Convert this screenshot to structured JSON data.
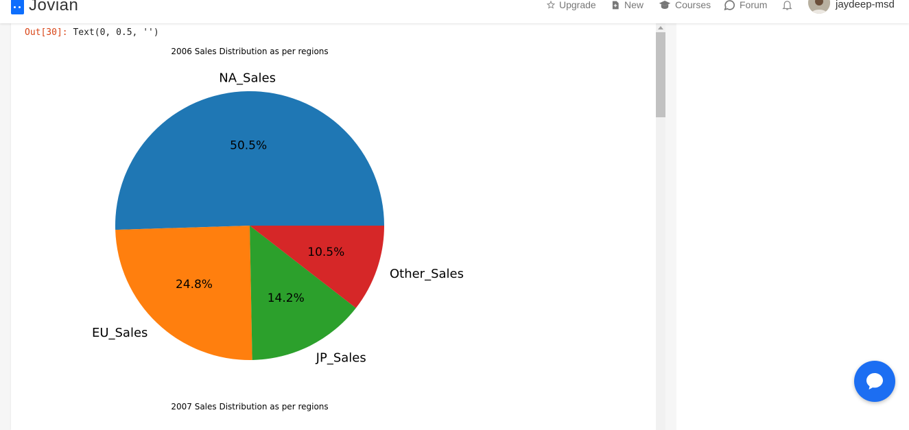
{
  "navbar": {
    "brand": "Jovian",
    "items": [
      {
        "label": "Upgrade",
        "icon": "star-icon"
      },
      {
        "label": "New",
        "icon": "new-file-icon"
      },
      {
        "label": "Courses",
        "icon": "graduation-cap-icon"
      },
      {
        "label": "Forum",
        "icon": "chat-bubble-icon"
      }
    ],
    "notification_icon": "bell-icon",
    "username": "jaydeep-msd"
  },
  "output": {
    "prompt": "Out[30]:",
    "value": "Text(0, 0.5, '')"
  },
  "chart_data": [
    {
      "type": "pie",
      "title": "2006 Sales Distribution as per regions",
      "categories": [
        "NA_Sales",
        "EU_Sales",
        "JP_Sales",
        "Other_Sales"
      ],
      "values": [
        50.5,
        24.8,
        14.2,
        10.5
      ],
      "labels_pct": [
        "50.5%",
        "24.8%",
        "14.2%",
        "10.5%"
      ],
      "colors": [
        "#1f77b4",
        "#ff7f0e",
        "#2ca02c",
        "#d62728"
      ]
    },
    {
      "type": "pie",
      "title": "2007 Sales Distribution as per regions"
    }
  ],
  "colors": {
    "accent": "#0d6efd",
    "chat_button": "#1c6ef2",
    "out_prompt": "#d84315"
  },
  "widgets": {
    "chat_icon": "chat-icon",
    "scroll_up_icon": "arrow-up-icon"
  }
}
